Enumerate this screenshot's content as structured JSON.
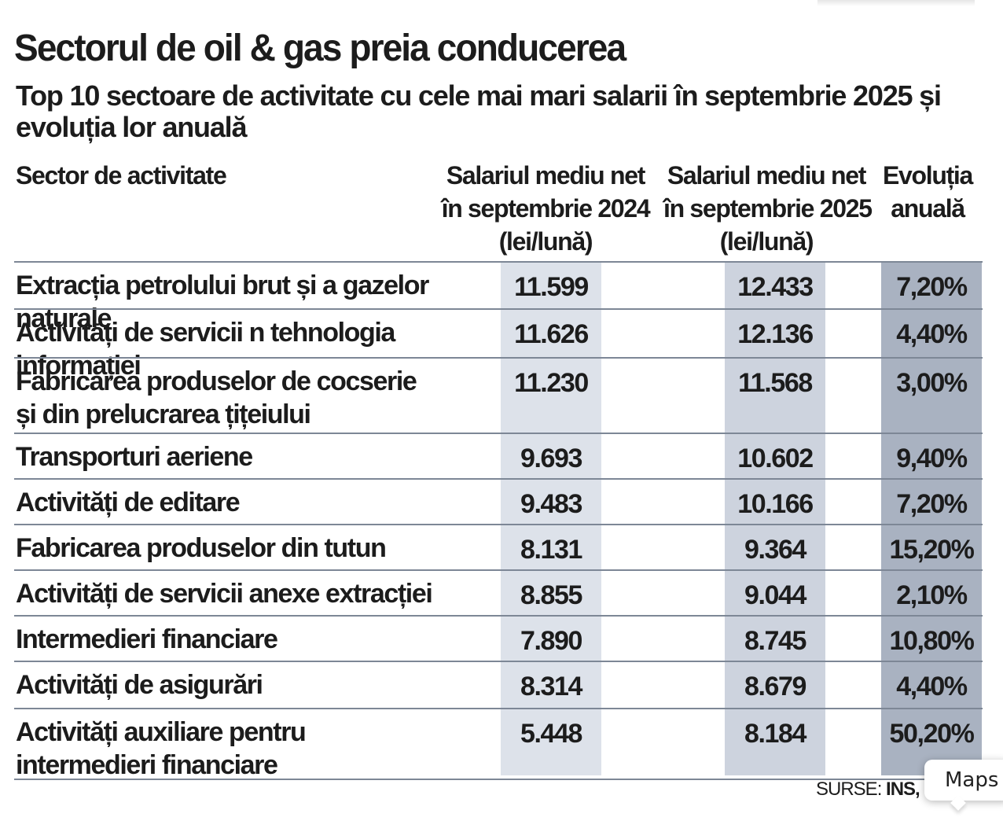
{
  "title": "Sectorul de oil & gas preia conducerea",
  "subtitle": "Top 10 sectoare de activitate cu cele mai mari salarii în septembrie 2025 și evoluția lor anuală",
  "headers": {
    "sector": "Sector de activitate",
    "col1": [
      "Salariul mediu net",
      "în septembrie 2024",
      "(lei/lună)"
    ],
    "col2": [
      "Salariul mediu net",
      "în septembrie 2025",
      "(lei/lună)"
    ],
    "col3": [
      "Evoluția",
      "anuală"
    ]
  },
  "rows": [
    {
      "sector": "Extracția petrolului brut și a gazelor naturale",
      "s2024": "11.599",
      "s2025": "12.433",
      "evolution": "7,20%"
    },
    {
      "sector": "Activități de servicii n tehnologia informației",
      "s2024": "11.626",
      "s2025": "12.136",
      "evolution": "4,40%"
    },
    {
      "sector": "Fabricarea produselor de cocserie\nși din prelucrarea țițeiului",
      "s2024": "11.230",
      "s2025": "11.568",
      "evolution": "3,00%"
    },
    {
      "sector": "Transporturi aeriene",
      "s2024": "9.693",
      "s2025": "10.602",
      "evolution": "9,40%"
    },
    {
      "sector": "Activități de editare",
      "s2024": "9.483",
      "s2025": "10.166",
      "evolution": "7,20%"
    },
    {
      "sector": "Fabricarea produselor din tutun",
      "s2024": "8.131",
      "s2025": "9.364",
      "evolution": "15,20%"
    },
    {
      "sector": "Activități de servicii anexe extracției",
      "s2024": "8.855",
      "s2025": "9.044",
      "evolution": "2,10%"
    },
    {
      "sector": "Intermedieri financiare",
      "s2024": "7.890",
      "s2025": "8.745",
      "evolution": "10,80%"
    },
    {
      "sector": "Activități de asigurări",
      "s2024": "8.314",
      "s2025": "8.679",
      "evolution": "4,40%"
    },
    {
      "sector": "Activități auxiliare pentru\nintermedieri financiare",
      "s2024": "5.448",
      "s2025": "8.184",
      "evolution": "50,20%"
    }
  ],
  "source": {
    "label": "SURSE:",
    "value": "INS, cal"
  },
  "tooltip": {
    "label": "Maps"
  },
  "colors": {
    "stripe_2024": "#dde2ea",
    "stripe_2025": "#cdd3de",
    "stripe_evolution": "#a9b2c1",
    "row_divider": "#7d8796"
  }
}
